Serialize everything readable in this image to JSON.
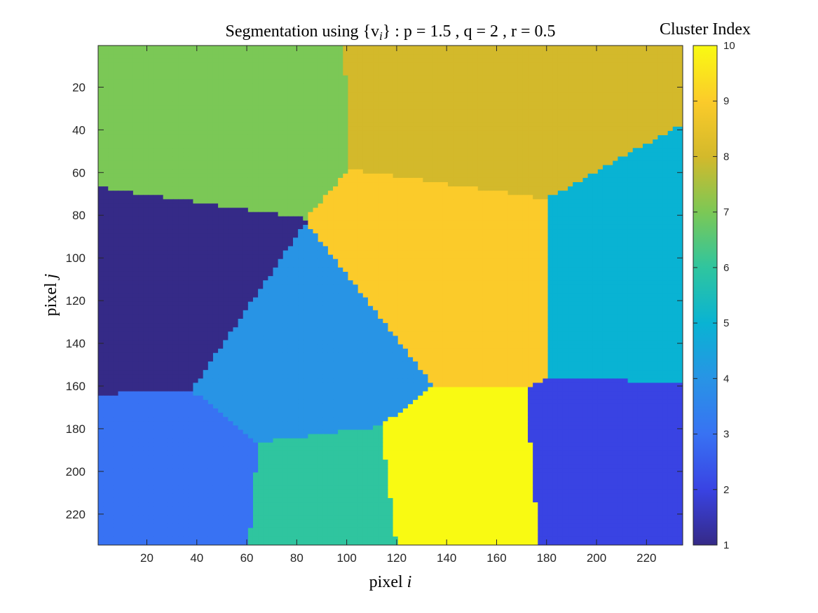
{
  "chart_data": {
    "type": "heatmap",
    "title": "Segmentation using {v",
    "title_sub": "i",
    "title_tail": "} : p = 1.5 , q = 2 , r = 0.5",
    "xlabel": "pixel",
    "xlabel_var": "i",
    "ylabel": "pixel",
    "ylabel_var": "j",
    "colorbar_label": "Cluster Index",
    "xlim": [
      0.5,
      234.5
    ],
    "ylim": [
      0.5,
      234.5
    ],
    "y_reversed": true,
    "x_ticks": [
      20,
      40,
      60,
      80,
      100,
      120,
      140,
      160,
      180,
      200,
      220
    ],
    "y_ticks": [
      20,
      40,
      60,
      80,
      100,
      120,
      140,
      160,
      180,
      200,
      220
    ],
    "colorbar_range": [
      1,
      10
    ],
    "colorbar_ticks": [
      1,
      2,
      3,
      4,
      5,
      6,
      7,
      8,
      9,
      10
    ],
    "colormap": "parula",
    "cluster_colors": {
      "1": "#352A87",
      "2": "#3943E3",
      "3": "#3872F3",
      "4": "#2894E5",
      "5": "#09B3D3",
      "6": "#2FC59F",
      "7": "#7BC856",
      "8": "#D3B92B",
      "9": "#FBCB2A",
      "10": "#F9FA12"
    },
    "clusters": [
      {
        "index": 7,
        "seed": [
          40,
          30
        ]
      },
      {
        "index": 8,
        "seed": [
          160,
          25
        ]
      },
      {
        "index": 1,
        "seed": [
          25,
          115
        ]
      },
      {
        "index": 9,
        "seed": [
          145,
          110
        ]
      },
      {
        "index": 5,
        "seed": [
          215,
          110
        ]
      },
      {
        "index": 4,
        "seed": [
          85,
          150
        ]
      },
      {
        "index": 3,
        "seed": [
          30,
          210
        ]
      },
      {
        "index": 6,
        "seed": [
          95,
          215
        ]
      },
      {
        "index": 10,
        "seed": [
          140,
          210
        ]
      },
      {
        "index": 2,
        "seed": [
          210,
          205
        ]
      }
    ]
  }
}
